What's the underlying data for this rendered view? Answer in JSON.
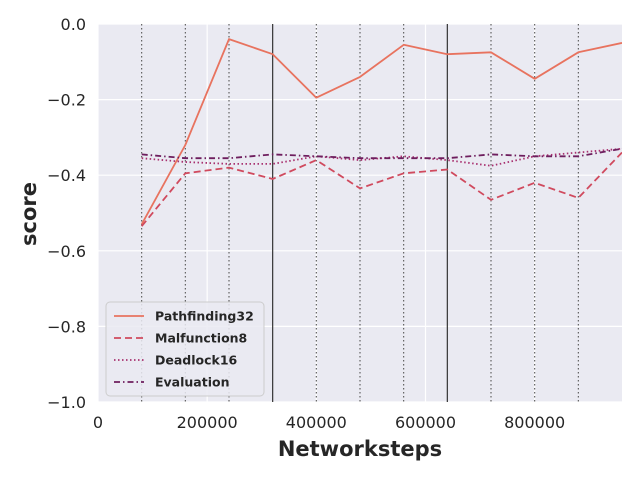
{
  "chart_data": {
    "type": "line",
    "xlabel": "Networksteps",
    "ylabel": "score",
    "xlim": [
      0,
      960000
    ],
    "ylim": [
      -1.0,
      0.0
    ],
    "x_ticks": [
      0,
      200000,
      400000,
      600000,
      800000
    ],
    "x_tick_labels": [
      "0",
      "200000",
      "400000",
      "600000",
      "800000"
    ],
    "y_ticks": [
      0.0,
      -0.2,
      -0.4,
      -0.6,
      -0.8,
      -1.0
    ],
    "y_tick_labels": [
      "0.0",
      "−0.2",
      "−0.4",
      "−0.6",
      "−0.8",
      "−1.0"
    ],
    "grid": true,
    "legend_position": "lower-left",
    "vertical_lines": {
      "dotted": [
        80000,
        160000,
        240000,
        400000,
        480000,
        560000,
        720000,
        800000,
        880000
      ],
      "solid": [
        320000,
        640000
      ]
    },
    "x": [
      80000,
      160000,
      240000,
      320000,
      400000,
      480000,
      560000,
      640000,
      720000,
      800000,
      880000,
      960000
    ],
    "series": [
      {
        "name": "Pathfinding32",
        "color": "#e8735f",
        "dash": "solid",
        "values": [
          -0.53,
          -0.32,
          -0.04,
          -0.08,
          -0.195,
          -0.14,
          -0.055,
          -0.08,
          -0.075,
          -0.145,
          -0.075,
          -0.05
        ]
      },
      {
        "name": "Malfunction8",
        "color": "#d04a5e",
        "dash": "dashed",
        "values": [
          -0.535,
          -0.395,
          -0.38,
          -0.41,
          -0.36,
          -0.435,
          -0.395,
          -0.385,
          -0.465,
          -0.42,
          -0.46,
          -0.34
        ]
      },
      {
        "name": "Deadlock16",
        "color": "#a8306f",
        "dash": "dotted",
        "values": [
          -0.355,
          -0.365,
          -0.37,
          -0.37,
          -0.35,
          -0.36,
          -0.35,
          -0.36,
          -0.375,
          -0.35,
          -0.34,
          -0.33
        ]
      },
      {
        "name": "Evaluation",
        "color": "#6e1e5e",
        "dash": "dashdot",
        "values": [
          -0.345,
          -0.355,
          -0.355,
          -0.345,
          -0.35,
          -0.355,
          -0.355,
          -0.355,
          -0.345,
          -0.35,
          -0.35,
          -0.33
        ]
      }
    ]
  }
}
